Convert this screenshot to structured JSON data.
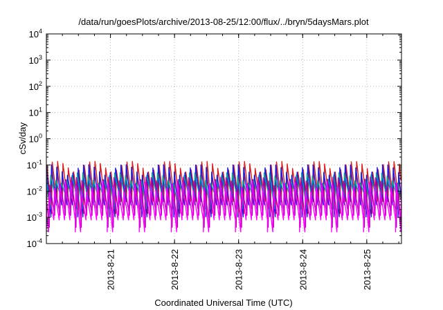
{
  "chart_data": {
    "type": "line",
    "title": "/data/run/goesPlots/archive/2013-08-25/12:00/flux/../bryn/5daysMars.plot",
    "xlabel": "Coordinated Universal Time (UTC)",
    "ylabel": "cSv/day",
    "y_scale": "log",
    "ylim": [
      0.0001,
      10000
    ],
    "y_ticks": [
      {
        "base": "10",
        "exp": "-4"
      },
      {
        "base": "10",
        "exp": "-3"
      },
      {
        "base": "10",
        "exp": "-2"
      },
      {
        "base": "10",
        "exp": "-1"
      },
      {
        "base": "10",
        "exp": "0"
      },
      {
        "base": "10",
        "exp": "1"
      },
      {
        "base": "10",
        "exp": "2"
      },
      {
        "base": "10",
        "exp": "3"
      },
      {
        "base": "10",
        "exp": "4"
      }
    ],
    "xlim": [
      "2013-08-20 00:00",
      "2013-08-25 13:00"
    ],
    "x_ticks": [
      "2013-8-21",
      "2013-8-22",
      "2013-8-23",
      "2013-8-24",
      "2013-8-25"
    ],
    "grid": true,
    "legend": "none",
    "sawtooth_period_hours": 2,
    "series": [
      {
        "color": "#d42020",
        "peak": 0.12,
        "trough": 0.004
      },
      {
        "color": "#1a1ae0",
        "peak": 0.09,
        "trough": 0.003
      },
      {
        "color": "#00a0a8",
        "peak": 0.045,
        "trough": 0.006
      },
      {
        "color": "#b000b0",
        "peak": 0.03,
        "trough": 0.0012
      },
      {
        "color": "#ff00ff",
        "peak": 0.02,
        "trough": 0.0008
      }
    ]
  }
}
